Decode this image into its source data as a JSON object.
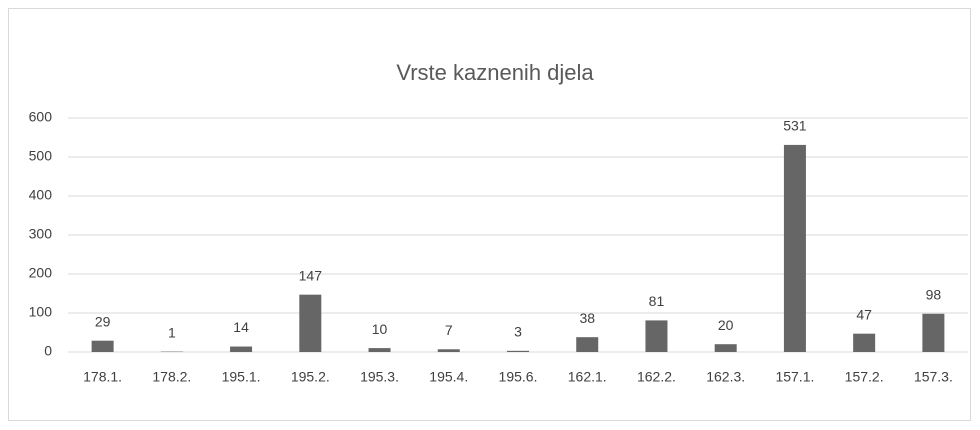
{
  "chart_data": {
    "type": "bar",
    "title": "Vrste kaznenih djela",
    "categories": [
      "178.1.",
      "178.2.",
      "195.1.",
      "195.2.",
      "195.3.",
      "195.4.",
      "195.6.",
      "162.1.",
      "162.2.",
      "162.3.",
      "157.1.",
      "157.2.",
      "157.3."
    ],
    "values": [
      29,
      1,
      14,
      147,
      10,
      7,
      3,
      38,
      81,
      20,
      531,
      47,
      98
    ],
    "color": "#666666",
    "ylim": [
      0,
      600
    ],
    "yticks": [
      0,
      100,
      200,
      300,
      400,
      500,
      600
    ],
    "grid": true
  }
}
